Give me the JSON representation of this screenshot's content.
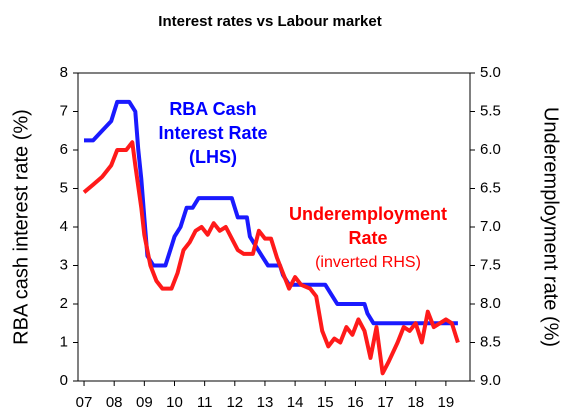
{
  "chart_data": {
    "type": "line",
    "title": "Interest rates vs Labour market",
    "y_label": "RBA cash interest rate (%)",
    "y2_label": "Underemployment rate (%)",
    "xlim": [
      6.8,
      19.8
    ],
    "xticks": [
      {
        "value": 7,
        "label": "07"
      },
      {
        "value": 8,
        "label": "08"
      },
      {
        "value": 9,
        "label": "09"
      },
      10,
      11,
      12,
      13,
      14,
      15,
      16,
      17,
      18,
      19
    ],
    "ylim": [
      0,
      8
    ],
    "yticks": [
      0,
      1,
      2,
      3,
      4,
      5,
      6,
      7,
      8
    ],
    "y2lim": [
      9,
      5
    ],
    "y2ticks": [
      {
        "value": 5,
        "label": "5.0"
      },
      {
        "value": 5.5,
        "label": "5.5"
      },
      {
        "value": 6,
        "label": "6.0"
      },
      {
        "value": 6.5,
        "label": "6.5"
      },
      {
        "value": 7,
        "label": "7.0"
      },
      {
        "value": 7.5,
        "label": "7.5"
      },
      {
        "value": 8,
        "label": "8.0"
      },
      {
        "value": 8.5,
        "label": "8.5"
      },
      {
        "value": 9,
        "label": "9.0"
      }
    ],
    "annotations": [
      {
        "lines": [
          "RBA  Cash",
          "Interest Rate",
          "(LHS)"
        ],
        "color": "#0000ff"
      },
      {
        "lines": [
          "Underemployment",
          "Rate",
          "(inverted RHS)"
        ],
        "color": "#ff0000"
      }
    ],
    "series": [
      {
        "name": "RBA Cash Interest Rate",
        "color": "#1a1aff",
        "axis": "y",
        "x": [
          7.0,
          7.3,
          7.6,
          7.9,
          8.1,
          8.5,
          8.7,
          8.8,
          8.9,
          9.0,
          9.1,
          9.3,
          9.7,
          9.9,
          10.0,
          10.2,
          10.4,
          10.6,
          10.8,
          11.9,
          12.0,
          12.1,
          12.4,
          12.5,
          12.7,
          12.9,
          13.1,
          13.5,
          13.6,
          13.8,
          15.0,
          15.2,
          15.4,
          16.3,
          16.4,
          16.6,
          19.4
        ],
        "values": [
          6.25,
          6.25,
          6.5,
          6.75,
          7.25,
          7.25,
          7.0,
          6.0,
          5.25,
          4.25,
          3.25,
          3.0,
          3.0,
          3.5,
          3.75,
          4.0,
          4.5,
          4.5,
          4.75,
          4.75,
          4.5,
          4.25,
          4.25,
          3.75,
          3.5,
          3.25,
          3.0,
          3.0,
          2.75,
          2.5,
          2.5,
          2.25,
          2.0,
          2.0,
          1.75,
          1.5,
          1.5
        ]
      },
      {
        "name": "Underemployment Rate",
        "color": "#ff1a1a",
        "axis": "y2",
        "x": [
          7.0,
          7.3,
          7.6,
          7.9,
          8.1,
          8.4,
          8.6,
          8.7,
          8.9,
          9.0,
          9.2,
          9.4,
          9.6,
          9.9,
          10.1,
          10.3,
          10.5,
          10.7,
          10.9,
          11.1,
          11.3,
          11.5,
          11.7,
          11.9,
          12.1,
          12.3,
          12.6,
          12.8,
          13.0,
          13.2,
          13.4,
          13.6,
          13.8,
          14.0,
          14.2,
          14.5,
          14.7,
          14.9,
          15.1,
          15.3,
          15.5,
          15.7,
          15.9,
          16.1,
          16.3,
          16.5,
          16.7,
          16.9,
          17.1,
          17.4,
          17.6,
          17.8,
          18.0,
          18.2,
          18.4,
          18.6,
          18.8,
          19.0,
          19.2,
          19.4
        ],
        "values": [
          6.55,
          6.45,
          6.35,
          6.2,
          6.0,
          6.0,
          5.9,
          6.2,
          6.75,
          7.1,
          7.5,
          7.7,
          7.8,
          7.8,
          7.6,
          7.3,
          7.2,
          7.05,
          7.0,
          7.1,
          6.95,
          7.05,
          7.0,
          7.15,
          7.3,
          7.35,
          7.35,
          7.05,
          7.15,
          7.15,
          7.4,
          7.6,
          7.8,
          7.65,
          7.75,
          7.8,
          7.9,
          8.35,
          8.55,
          8.45,
          8.5,
          8.3,
          8.4,
          8.2,
          8.35,
          8.7,
          8.3,
          8.9,
          8.75,
          8.5,
          8.3,
          8.35,
          8.25,
          8.5,
          8.1,
          8.3,
          8.25,
          8.2,
          8.25,
          8.5
        ]
      }
    ]
  }
}
